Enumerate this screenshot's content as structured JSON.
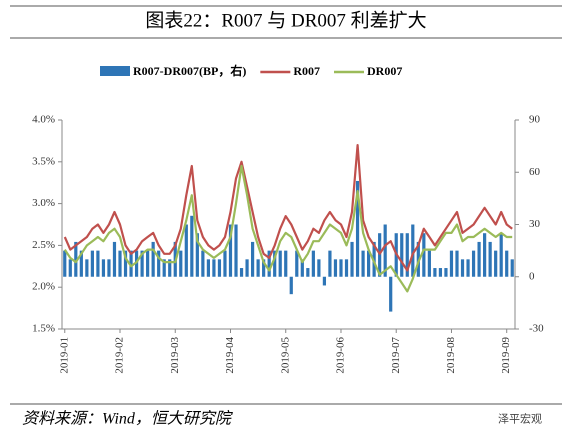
{
  "chart_data": {
    "type": "bar-line",
    "title": "图表22：R007 与 DR007 利差扩大",
    "source": "资料来源：Wind，恒大研究院",
    "watermark": "泽平宏观",
    "categories": [
      "2019-01",
      null,
      null,
      null,
      null,
      null,
      null,
      null,
      null,
      null,
      "2019-02",
      null,
      null,
      null,
      null,
      null,
      null,
      null,
      null,
      null,
      "2019-03",
      null,
      null,
      null,
      null,
      null,
      null,
      null,
      null,
      null,
      "2019-04",
      null,
      null,
      null,
      null,
      null,
      null,
      null,
      null,
      null,
      "2019-05",
      null,
      null,
      null,
      null,
      null,
      null,
      null,
      null,
      null,
      "2019-06",
      null,
      null,
      null,
      null,
      null,
      null,
      null,
      null,
      null,
      "2019-07",
      null,
      null,
      null,
      null,
      null,
      null,
      null,
      null,
      null,
      "2019-08",
      null,
      null,
      null,
      null,
      null,
      null,
      null,
      null,
      null,
      "2019-09",
      null
    ],
    "series": [
      {
        "name": "R007-DR007(BP，右)",
        "type": "bar",
        "axis": "y2",
        "color": "#2e75b6",
        "values": [
          15,
          10,
          20,
          15,
          10,
          15,
          15,
          10,
          10,
          20,
          15,
          15,
          15,
          15,
          15,
          15,
          20,
          15,
          10,
          10,
          20,
          15,
          30,
          35,
          25,
          15,
          10,
          10,
          10,
          15,
          30,
          30,
          5,
          10,
          20,
          10,
          10,
          15,
          15,
          15,
          15,
          -10,
          15,
          10,
          5,
          15,
          10,
          -5,
          15,
          10,
          10,
          10,
          20,
          55,
          15,
          15,
          20,
          25,
          30,
          -20,
          25,
          25,
          25,
          30,
          20,
          25,
          15,
          5,
          5,
          5,
          15,
          15,
          10,
          10,
          15,
          20,
          25,
          20,
          15,
          25,
          15,
          10
        ]
      },
      {
        "name": "R007",
        "type": "line",
        "color": "#c0504d",
        "values": [
          2.6,
          2.45,
          2.5,
          2.55,
          2.6,
          2.7,
          2.75,
          2.65,
          2.75,
          2.9,
          2.75,
          2.5,
          2.4,
          2.45,
          2.55,
          2.6,
          2.65,
          2.5,
          2.4,
          2.4,
          2.5,
          2.7,
          3.1,
          3.45,
          2.8,
          2.6,
          2.5,
          2.45,
          2.5,
          2.6,
          2.9,
          3.3,
          3.5,
          3.2,
          2.9,
          2.6,
          2.4,
          2.35,
          2.5,
          2.7,
          2.85,
          2.75,
          2.6,
          2.45,
          2.55,
          2.7,
          2.65,
          2.8,
          2.9,
          2.8,
          2.75,
          2.6,
          2.9,
          3.7,
          2.8,
          2.6,
          2.5,
          2.4,
          2.5,
          2.55,
          2.4,
          2.3,
          2.2,
          2.4,
          2.5,
          2.7,
          2.6,
          2.5,
          2.6,
          2.7,
          2.8,
          2.9,
          2.65,
          2.7,
          2.75,
          2.85,
          2.95,
          2.85,
          2.75,
          2.9,
          2.75,
          2.7
        ]
      },
      {
        "name": "DR007",
        "type": "line",
        "color": "#9bbb59",
        "values": [
          2.45,
          2.35,
          2.3,
          2.4,
          2.5,
          2.55,
          2.6,
          2.55,
          2.65,
          2.7,
          2.6,
          2.35,
          2.25,
          2.3,
          2.4,
          2.45,
          2.45,
          2.35,
          2.3,
          2.3,
          2.3,
          2.55,
          2.8,
          3.1,
          2.55,
          2.45,
          2.4,
          2.35,
          2.4,
          2.45,
          2.6,
          3.0,
          3.45,
          3.1,
          2.7,
          2.5,
          2.3,
          2.2,
          2.35,
          2.55,
          2.65,
          2.6,
          2.45,
          2.3,
          2.4,
          2.55,
          2.55,
          2.65,
          2.75,
          2.7,
          2.65,
          2.5,
          2.7,
          3.15,
          2.65,
          2.45,
          2.3,
          2.15,
          2.2,
          2.25,
          2.15,
          2.05,
          1.95,
          2.1,
          2.3,
          2.45,
          2.45,
          2.45,
          2.55,
          2.65,
          2.65,
          2.75,
          2.55,
          2.6,
          2.6,
          2.65,
          2.7,
          2.65,
          2.6,
          2.65,
          2.6,
          2.6
        ]
      }
    ],
    "ylim": [
      1.5,
      4.0
    ],
    "yticks": [
      {
        "value": 1.5,
        "label": "1.5%"
      },
      {
        "value": 2.0,
        "label": "2.0%"
      },
      {
        "value": 2.5,
        "label": "2.5%"
      },
      {
        "value": 3.0,
        "label": "3.0%"
      },
      {
        "value": 3.5,
        "label": "3.5%"
      },
      {
        "value": 4.0,
        "label": "4.0%"
      }
    ],
    "y2lim": [
      -30,
      90
    ],
    "y2ticks": [
      -30,
      0,
      30,
      60,
      90
    ],
    "grid": false
  }
}
